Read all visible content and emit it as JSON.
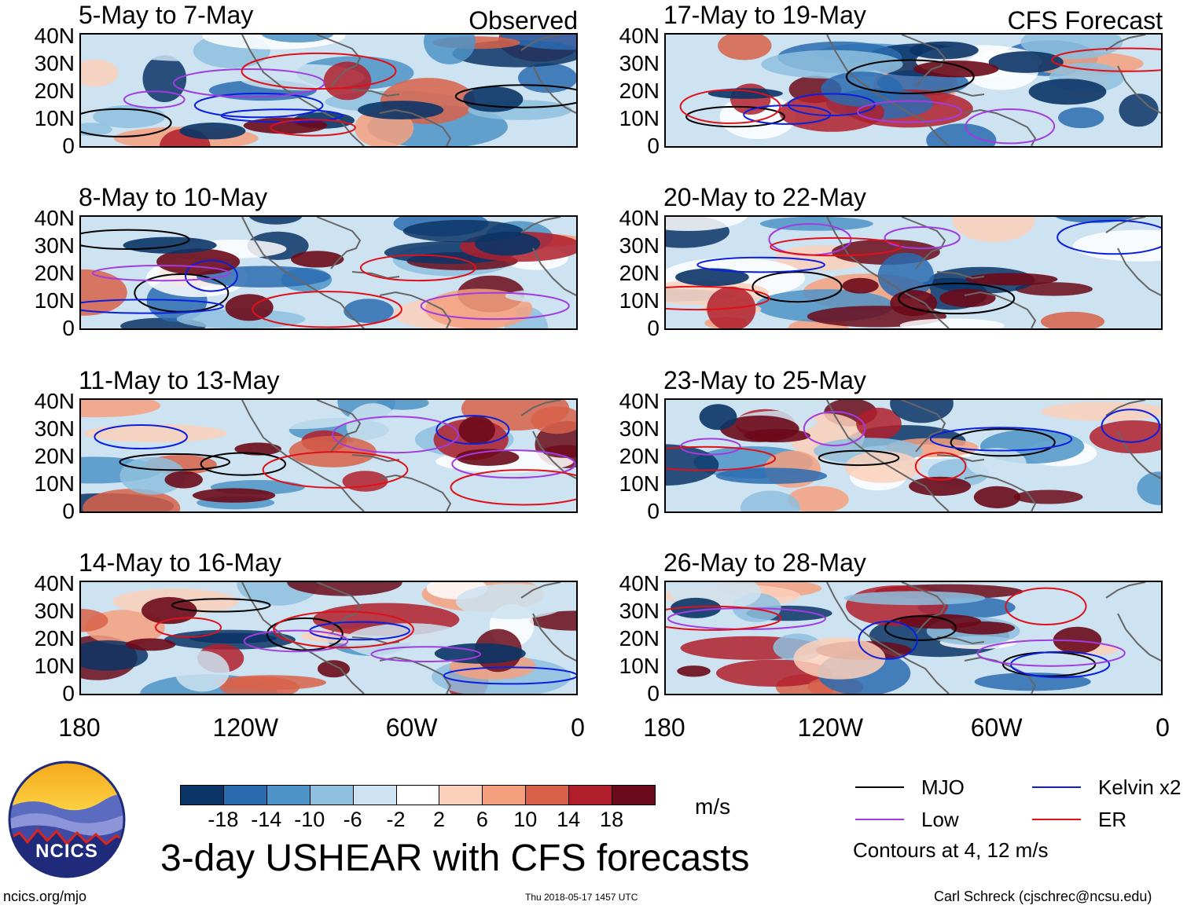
{
  "panels": [
    {
      "title": "5-May to 7-May",
      "tag": "Observed",
      "kind": "observed"
    },
    {
      "title": "17-May to 19-May",
      "tag": "CFS Forecast",
      "kind": "forecast"
    },
    {
      "title": "8-May to 10-May",
      "tag": "",
      "kind": "observed"
    },
    {
      "title": "20-May to 22-May",
      "tag": "",
      "kind": "forecast"
    },
    {
      "title": "11-May to 13-May",
      "tag": "",
      "kind": "observed"
    },
    {
      "title": "23-May to 25-May",
      "tag": "",
      "kind": "forecast"
    },
    {
      "title": "14-May to 16-May",
      "tag": "",
      "kind": "observed"
    },
    {
      "title": "26-May to 28-May",
      "tag": "",
      "kind": "forecast"
    }
  ],
  "axes": {
    "lat_labels": [
      "40N",
      "30N",
      "20N",
      "10N",
      "0"
    ],
    "lon_labels": [
      "180",
      "120W",
      "60W",
      "0"
    ]
  },
  "colorbar": {
    "unit": "m/s",
    "labels": [
      "-18",
      "-14",
      "-10",
      "-6",
      "-2",
      "2",
      "6",
      "10",
      "14",
      "18"
    ],
    "colors": [
      "#0b3466",
      "#2a6bb0",
      "#4e93c7",
      "#8ebfde",
      "#cde3f1",
      "#ffffff",
      "#fbd0bb",
      "#f4a07f",
      "#d8614a",
      "#b01e2c",
      "#6b0a1a"
    ]
  },
  "legend": {
    "items": [
      {
        "label": "MJO",
        "color": "#000000"
      },
      {
        "label": "Kelvin x2",
        "color": "#0a1fe0"
      },
      {
        "label": "Low",
        "color": "#a23be0"
      },
      {
        "label": "ER",
        "color": "#e0101a"
      }
    ],
    "note": "Contours at 4, 12 m/s"
  },
  "logo": {
    "text": "NCICS"
  },
  "title": "3-day USHEAR with CFS forecasts",
  "footer": {
    "url": "ncics.org/mjo",
    "timestamp": "Thu 2018-05-17 1457 UTC",
    "credit": "Carl Schreck (cjschrec@ncsu.edu)"
  }
}
